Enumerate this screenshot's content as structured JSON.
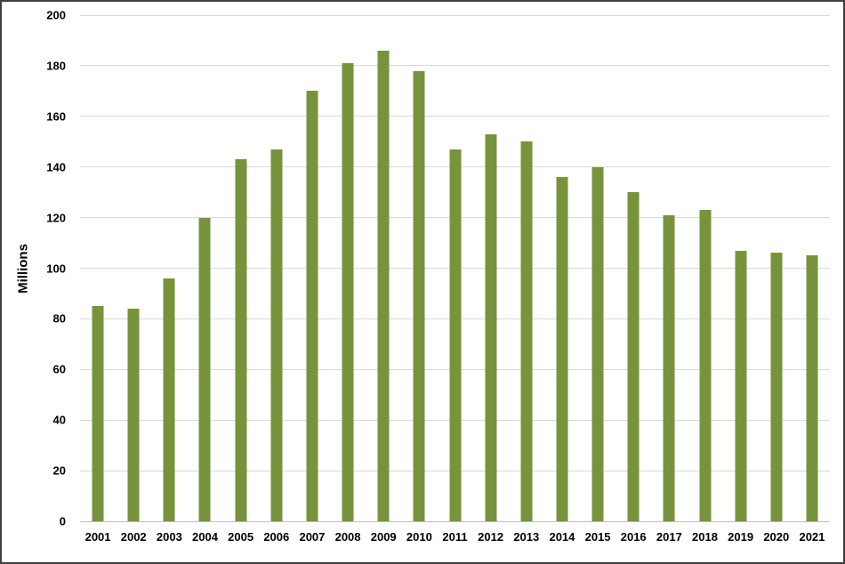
{
  "figure": {
    "background": "#ffffff",
    "border_color": "#3f3f3f"
  },
  "chart_data": {
    "type": "bar",
    "title": "",
    "xlabel": "",
    "ylabel": "Millions",
    "categories": [
      "2001",
      "2002",
      "2003",
      "2004",
      "2005",
      "2006",
      "2007",
      "2008",
      "2009",
      "2010",
      "2011",
      "2012",
      "2013",
      "2014",
      "2015",
      "2016",
      "2017",
      "2018",
      "2019",
      "2020",
      "2021"
    ],
    "values": [
      85,
      84,
      96,
      120,
      143,
      147,
      170,
      181,
      186,
      178,
      147,
      153,
      150,
      136,
      140,
      130,
      121,
      123,
      107,
      106,
      105
    ],
    "ylim": [
      0,
      200
    ],
    "ytick_step": 20,
    "grid": true,
    "legend_position": "none",
    "bar_color": "#77933C",
    "gridline_color": "#d9d9d9"
  }
}
